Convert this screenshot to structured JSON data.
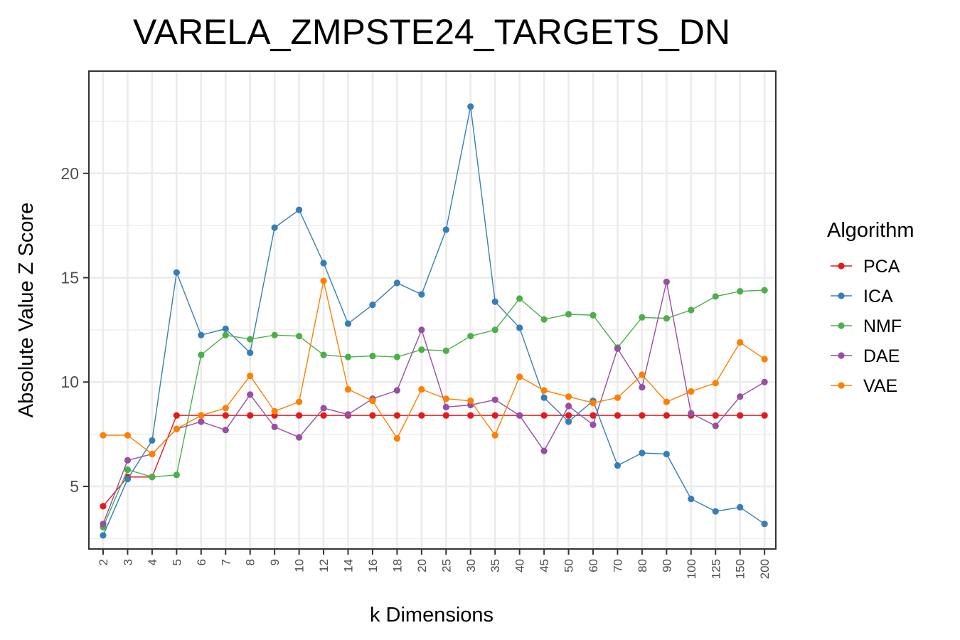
{
  "chart_data": {
    "type": "line",
    "title": "VARELA_ZMPSTE24_TARGETS_DN",
    "xlabel": "k Dimensions",
    "ylabel": "Absolute Value Z Score",
    "categories": [
      "2",
      "3",
      "4",
      "5",
      "6",
      "7",
      "8",
      "9",
      "10",
      "12",
      "14",
      "16",
      "18",
      "20",
      "25",
      "30",
      "35",
      "40",
      "45",
      "50",
      "60",
      "70",
      "80",
      "90",
      "100",
      "125",
      "150",
      "200"
    ],
    "ylim": [
      2.0,
      24.9
    ],
    "yticks": [
      5,
      10,
      15,
      20
    ],
    "grid": true,
    "legend": {
      "title": "Algorithm",
      "position": "right"
    },
    "series": [
      {
        "name": "PCA",
        "color": "#e41a1c",
        "values": [
          4.05,
          5.45,
          5.45,
          8.4,
          8.4,
          8.4,
          8.4,
          8.4,
          8.4,
          8.4,
          8.4,
          8.4,
          8.4,
          8.4,
          8.4,
          8.4,
          8.4,
          8.4,
          8.4,
          8.4,
          8.4,
          8.4,
          8.4,
          8.4,
          8.4,
          8.4,
          8.4,
          8.4
        ]
      },
      {
        "name": "ICA",
        "color": "#377eb8",
        "values": [
          2.65,
          5.35,
          7.2,
          15.25,
          12.25,
          12.55,
          11.4,
          17.4,
          18.25,
          15.7,
          12.8,
          13.7,
          14.75,
          14.2,
          17.3,
          23.2,
          13.85,
          12.6,
          9.25,
          8.1,
          9.1,
          6.0,
          6.6,
          6.55,
          4.4,
          3.8,
          4.0,
          3.2
        ]
      },
      {
        "name": "NMF",
        "color": "#4daf4a",
        "values": [
          3.05,
          5.8,
          5.45,
          5.55,
          11.3,
          12.25,
          12.05,
          12.25,
          12.2,
          11.3,
          11.2,
          11.25,
          11.2,
          11.55,
          11.5,
          12.2,
          12.5,
          14.0,
          13.0,
          13.25,
          13.2,
          11.65,
          13.1,
          13.05,
          13.45,
          14.1,
          14.35,
          14.4
        ]
      },
      {
        "name": "DAE",
        "color": "#984ea3",
        "values": [
          3.2,
          6.25,
          6.55,
          7.75,
          8.1,
          7.7,
          9.4,
          7.85,
          7.35,
          8.75,
          8.45,
          9.2,
          9.6,
          12.5,
          8.8,
          8.9,
          9.15,
          8.4,
          6.7,
          8.85,
          7.95,
          11.6,
          9.75,
          14.8,
          8.5,
          7.9,
          9.3,
          10.0
        ]
      },
      {
        "name": "VAE",
        "color": "#ff7f00",
        "values": [
          7.45,
          7.45,
          6.55,
          7.75,
          8.4,
          8.75,
          10.3,
          8.6,
          9.05,
          14.85,
          9.65,
          9.1,
          7.3,
          9.65,
          9.2,
          9.1,
          7.45,
          10.25,
          9.6,
          9.3,
          9.0,
          9.25,
          10.35,
          9.05,
          9.55,
          9.95,
          11.9,
          11.1
        ]
      }
    ]
  }
}
